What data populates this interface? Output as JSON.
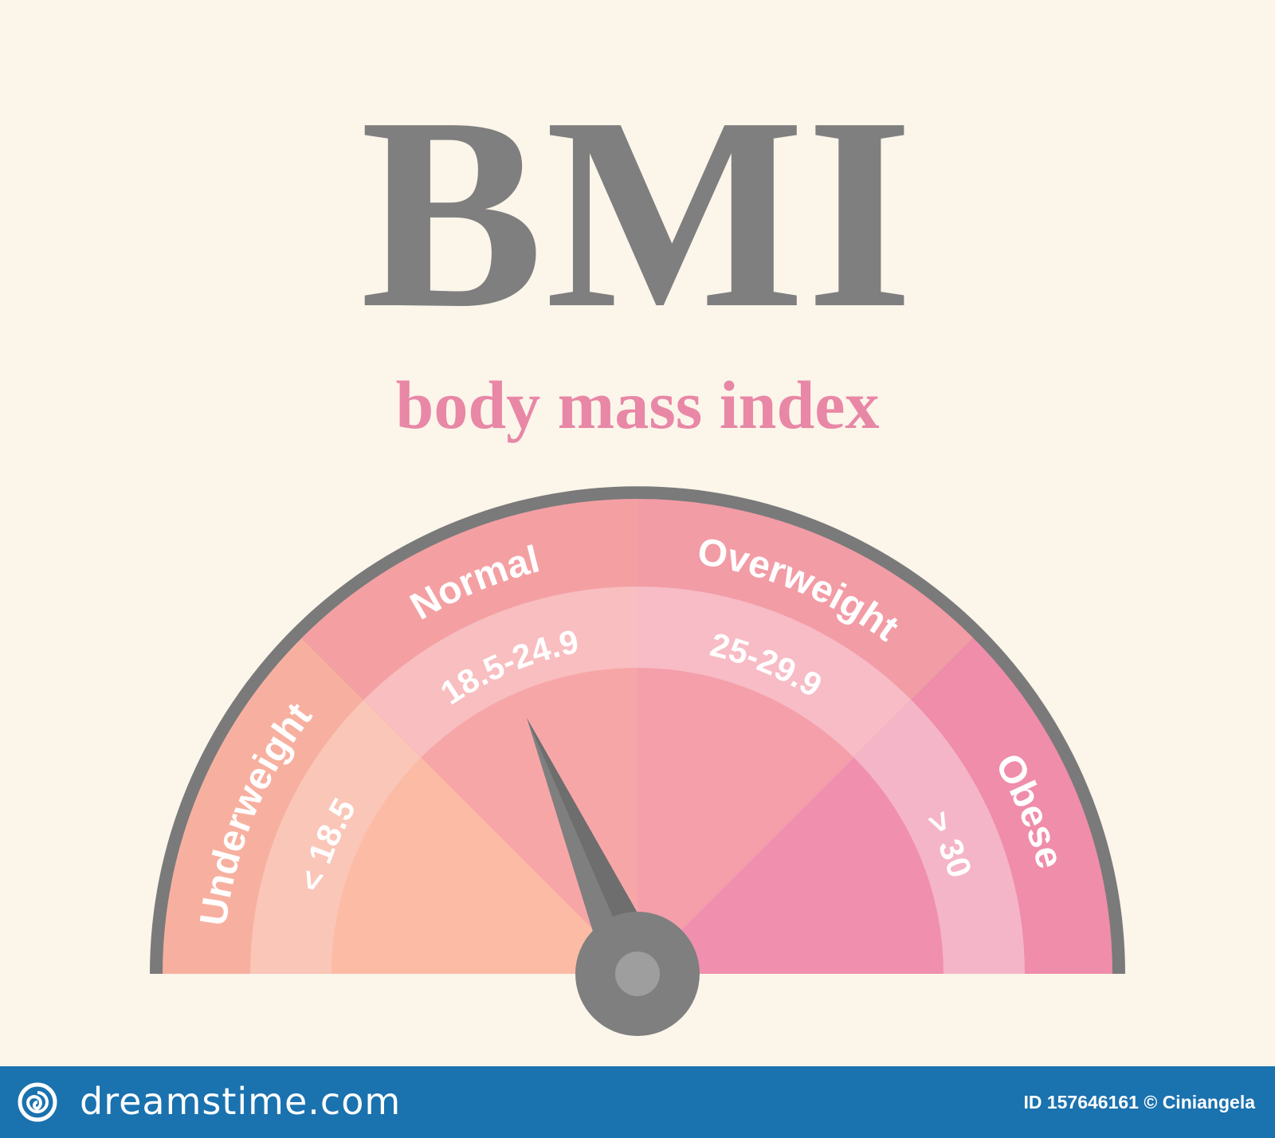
{
  "title": "BMI",
  "subtitle": "body mass index",
  "gauge": {
    "segments": [
      {
        "name": "Underweight",
        "range": "< 18.5",
        "colors": {
          "outer": "#F7B0A0",
          "band": "#FAC6B8",
          "inner": "#FCBBA4"
        }
      },
      {
        "name": "Normal",
        "range": "18.5-24.9",
        "colors": {
          "outer": "#F4A0A3",
          "band": "#F8BEC0",
          "inner": "#F7A6A8"
        }
      },
      {
        "name": "Overweight",
        "range": "25-29.9",
        "colors": {
          "outer": "#F29CA6",
          "band": "#F7BCC6",
          "inner": "#F49FAA"
        }
      },
      {
        "name": "Obese",
        "range": "> 30",
        "colors": {
          "outer": "#EF8DAA",
          "band": "#F5B5C8",
          "inner": "#F090AE"
        }
      }
    ],
    "rim_color": "#7A7A7A",
    "needle_color": "#7F7F7F",
    "needle_pointer": "Normal",
    "needle_position": 0.37
  },
  "footer": {
    "brand": "dreamstime.com",
    "credit": "ID 157646161 © Ciniangela",
    "bar_color": "#1A72AF",
    "logo_icon": "dreamstime-spiral-icon"
  }
}
